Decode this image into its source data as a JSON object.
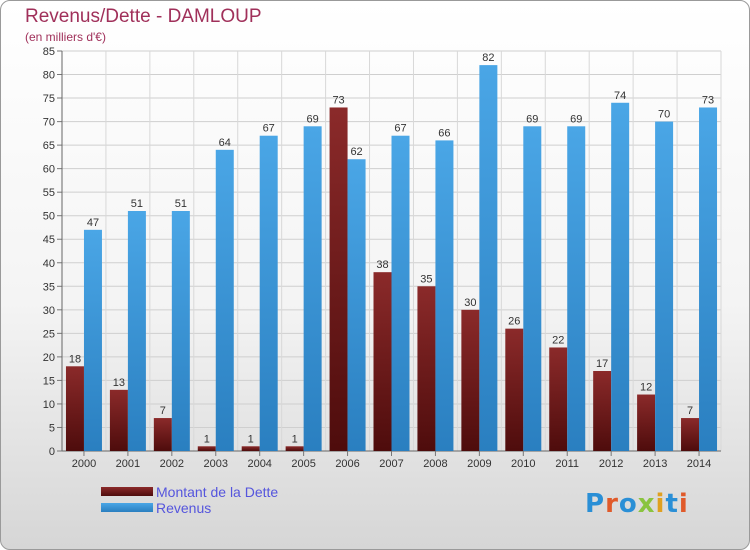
{
  "header": {
    "title": "Revenus/Dette - DAMLOUP",
    "subtitle": "(en milliers d'€)"
  },
  "legend": {
    "dette_label": "Montant de la Dette",
    "revenus_label": "Revenus"
  },
  "logo": {
    "text": "Proxiti",
    "colors": [
      "#2a8fd6",
      "#e05a2a",
      "#2a8fd6",
      "#8ac43f",
      "#e0a020",
      "#2a8fd6",
      "#e05a2a"
    ]
  },
  "colors": {
    "dette": "#8b2a2a",
    "dette_dark": "#4e0c0c",
    "revenus": "#4aa6e6",
    "revenus_dark": "#2a7fc0",
    "title": "#a0305a",
    "legend_text": "#5555dd"
  },
  "chart_data": {
    "type": "bar",
    "title": "Revenus/Dette - DAMLOUP",
    "subtitle": "(en milliers d'€)",
    "categories": [
      "2000",
      "2001",
      "2002",
      "2003",
      "2004",
      "2005",
      "2006",
      "2007",
      "2008",
      "2009",
      "2010",
      "2011",
      "2012",
      "2013",
      "2014"
    ],
    "series": [
      {
        "name": "Montant de la Dette",
        "values": [
          18,
          13,
          7,
          1,
          1,
          1,
          73,
          38,
          35,
          30,
          26,
          22,
          17,
          12,
          7
        ]
      },
      {
        "name": "Revenus",
        "values": [
          47,
          51,
          51,
          64,
          67,
          69,
          62,
          67,
          66,
          82,
          69,
          69,
          74,
          70,
          73
        ]
      }
    ],
    "ylim": [
      0,
      85
    ],
    "ytick_step": 5,
    "grid": true,
    "legend_position": "bottom-left"
  }
}
